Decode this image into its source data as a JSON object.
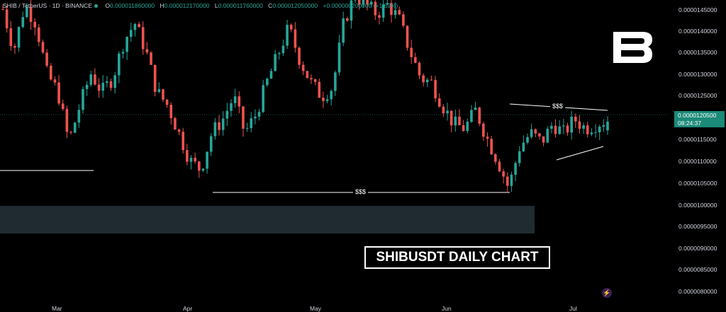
{
  "header": {
    "symbol": "SHIB / TetherUS · 1D · BINANCE",
    "o_label": "O",
    "o_value": "0.000011860000",
    "h_label": "H",
    "h_value": "0.000012170000",
    "l_label": "L",
    "l_value": "0.000011760000",
    "c_label": "C",
    "c_value": "0.000012050000",
    "change": "+0.000000200000 (+1.69%)"
  },
  "price_scale": {
    "labels": [
      "0.0000145000",
      "0.0000140000",
      "0.0000135000",
      "0.0000130000",
      "0.0000125000",
      "0.0000115000",
      "0.0000110000",
      "0.0000105000",
      "0.0000100000",
      "0.0000095000",
      "0.0000090000",
      "0.0000085000",
      "0.0000080000"
    ],
    "current_price": "0.0000120500",
    "countdown": "08:24:37"
  },
  "time_axis": {
    "labels": [
      "Mar",
      "Apr",
      "May",
      "Jun",
      "Jul"
    ]
  },
  "annotations": {
    "title": "SHIBUSDT DAILY CHART",
    "liquidity_top": "$$$",
    "liquidity_bottom": "$$$"
  },
  "colors": {
    "up": "#26a69a",
    "down": "#ef5350",
    "zone": "#1f2b30",
    "background": "#000000"
  },
  "icons": {
    "logo": "brand-b-logo",
    "bolt": "lightning-icon"
  },
  "chart_data": {
    "type": "candlestick",
    "symbol": "SHIB/USDT",
    "interval": "1D",
    "ylim": [
      7.9e-06,
      1.47e-05
    ],
    "x_ticks": [
      "Mar",
      "Apr",
      "May",
      "Jun",
      "Jul"
    ],
    "last_candle": {
      "open": 1.186e-05,
      "high": 1.217e-05,
      "low": 1.176e-05,
      "close": 1.205e-05
    },
    "close_path": [
      1.45e-05,
      1.36e-05,
      1.46e-05,
      1.42e-05,
      1.31e-05,
      1.27e-05,
      1.16e-05,
      1.24e-05,
      1.31e-05,
      1.27e-05,
      1.3e-05,
      1.38e-05,
      1.42e-05,
      1.36e-05,
      1.27e-05,
      1.24e-05,
      1.18e-05,
      1.12e-05,
      1.1e-05,
      1.18e-05,
      1.21e-05,
      1.26e-05,
      1.18e-05,
      1.22e-05,
      1.29e-05,
      1.35e-05,
      1.41e-05,
      1.34e-05,
      1.29e-05,
      1.26e-05,
      1.28e-05,
      1.42e-05,
      1.48e-05,
      1.46e-05,
      1.44e-05,
      1.46e-05,
      1.43e-05,
      1.36e-05,
      1.3e-05,
      1.29e-05,
      1.24e-05,
      1.2e-05,
      1.19e-05,
      1.23e-05,
      1.17e-05,
      1.12e-05,
      1.06e-05,
      1.15e-05,
      1.18e-05,
      1.16e-05,
      1.2e-05,
      1.18e-05,
      1.21e-05,
      1.19e-05,
      1.2e-05,
      1.21e-05
    ],
    "liquidity_low": 1.03e-05,
    "liquidity_high": 1.23e-05,
    "demand_zone": [
      9.3e-06,
      9.95e-06
    ]
  }
}
